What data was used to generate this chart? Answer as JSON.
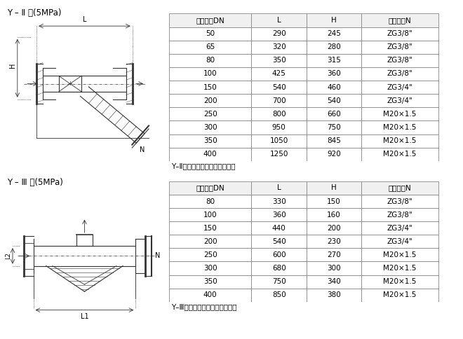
{
  "title1": "Y – Ⅱ 型(5MPa)",
  "title2": "Y – Ⅲ 型(5MPa)",
  "table1_caption": "Y–Ⅱ型焊接型法兰连接式过滤器",
  "table2_caption": "Y–Ⅲ型焊接型法兰连接式过滤器",
  "table1_headers": [
    "公称直径DN",
    "L",
    "H",
    "管塞螺紹N"
  ],
  "table1_data": [
    [
      "50",
      "290",
      "245",
      "ZG3/8\""
    ],
    [
      "65",
      "320",
      "280",
      "ZG3/8\""
    ],
    [
      "80",
      "350",
      "315",
      "ZG3/8\""
    ],
    [
      "100",
      "425",
      "360",
      "ZG3/8\""
    ],
    [
      "150",
      "540",
      "460",
      "ZG3/4\""
    ],
    [
      "200",
      "700",
      "540",
      "ZG3/4\""
    ],
    [
      "250",
      "800",
      "660",
      "M20×1.5"
    ],
    [
      "300",
      "950",
      "750",
      "M20×1.5"
    ],
    [
      "350",
      "1050",
      "845",
      "M20×1.5"
    ],
    [
      "400",
      "1250",
      "920",
      "M20×1.5"
    ]
  ],
  "table2_headers": [
    "公称直径DN",
    "L",
    "H",
    "管塞螺紹N"
  ],
  "table2_data": [
    [
      "80",
      "330",
      "150",
      "ZG3/8\""
    ],
    [
      "100",
      "360",
      "160",
      "ZG3/8\""
    ],
    [
      "150",
      "440",
      "200",
      "ZG3/4\""
    ],
    [
      "200",
      "540",
      "230",
      "ZG3/4\""
    ],
    [
      "250",
      "600",
      "270",
      "M20×1.5"
    ],
    [
      "300",
      "680",
      "300",
      "M20×1.5"
    ],
    [
      "350",
      "750",
      "340",
      "M20×1.5"
    ],
    [
      "400",
      "850",
      "380",
      "M20×1.5"
    ]
  ],
  "bg_color": "#ffffff",
  "line_color": "#333333",
  "table_edge_color": "#888888",
  "header_bg": "#f0f0f0",
  "font_size_title": 8.5,
  "font_size_table": 7.5,
  "font_size_caption": 7.5
}
